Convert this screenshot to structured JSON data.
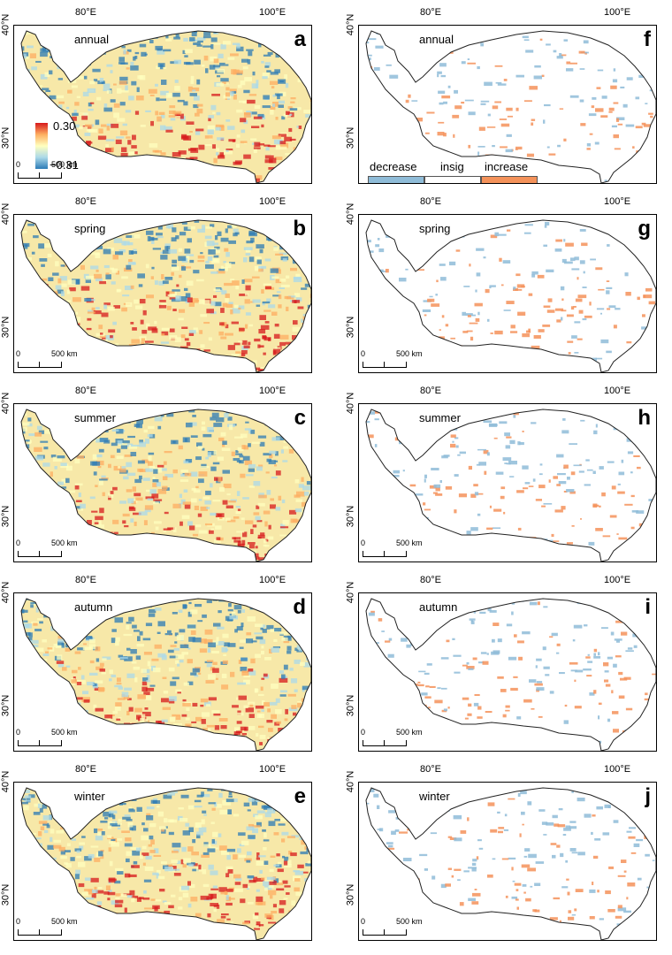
{
  "axis": {
    "lon_left": "80°E",
    "lon_right": "100°E",
    "lat_top": "40°N",
    "lat_bottom": "30°N"
  },
  "scale": {
    "zero": "0",
    "km": "500 km"
  },
  "colorbar": {
    "max": "0.30",
    "min": "−0.31",
    "colors": [
      "#d7191c",
      "#fdae61",
      "#ffffbf",
      "#abd9e9",
      "#2c7bb6"
    ]
  },
  "legend": {
    "items": [
      {
        "label": "decrease",
        "color": "#8fbcd8"
      },
      {
        "label": "insig",
        "color": "#ffffff"
      },
      {
        "label": "increase",
        "color": "#f4925a"
      }
    ]
  },
  "panels": [
    {
      "letter": "a",
      "season": "annual",
      "kind": "trend"
    },
    {
      "letter": "b",
      "season": "spring",
      "kind": "trend"
    },
    {
      "letter": "c",
      "season": "summer",
      "kind": "trend"
    },
    {
      "letter": "d",
      "season": "autumn",
      "kind": "trend"
    },
    {
      "letter": "e",
      "season": "winter",
      "kind": "trend"
    },
    {
      "letter": "f",
      "season": "annual",
      "kind": "significance"
    },
    {
      "letter": "g",
      "season": "spring",
      "kind": "significance"
    },
    {
      "letter": "h",
      "season": "summer",
      "kind": "significance"
    },
    {
      "letter": "i",
      "season": "autumn",
      "kind": "significance"
    },
    {
      "letter": "j",
      "season": "winter",
      "kind": "significance"
    }
  ]
}
